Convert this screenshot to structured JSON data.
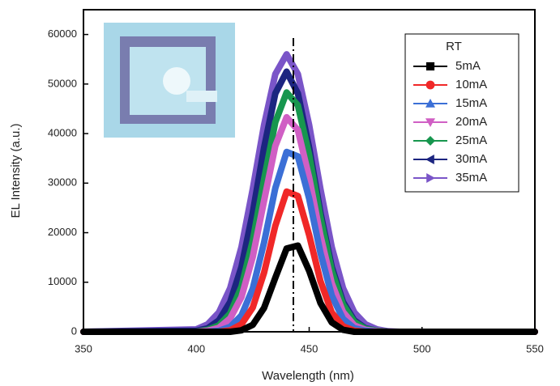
{
  "chart_data": {
    "type": "line",
    "x_label": "Wavelength (nm)",
    "y_label": "EL Intensity (a.u.)",
    "legend_title": "RT",
    "legend_position": "upper right",
    "xlim": [
      350,
      550
    ],
    "xticks": [
      350,
      400,
      450,
      500,
      550
    ],
    "ylim": [
      0,
      65000
    ],
    "yticks": [
      0,
      10000,
      20000,
      30000,
      40000,
      50000,
      60000
    ],
    "vline_x": 443,
    "x": [
      350,
      400,
      405,
      410,
      415,
      420,
      425,
      430,
      435,
      440,
      445,
      450,
      455,
      460,
      465,
      470,
      475,
      480,
      485,
      490,
      500,
      550
    ],
    "series": [
      {
        "name": "5mA",
        "color": "#000000",
        "marker": "square",
        "values": [
          0,
          0,
          0,
          0,
          0,
          300,
          1400,
          4800,
          10900,
          16800,
          17400,
          12300,
          5800,
          1900,
          400,
          0,
          0,
          0,
          0,
          0,
          0,
          0
        ]
      },
      {
        "name": "10mA",
        "color": "#f02828",
        "marker": "circle",
        "values": [
          0,
          0,
          0,
          0,
          300,
          1500,
          4900,
          11900,
          21400,
          28300,
          27400,
          19500,
          10200,
          3900,
          1100,
          200,
          0,
          0,
          0,
          0,
          0,
          0
        ]
      },
      {
        "name": "15mA",
        "color": "#3b6fd6",
        "marker": "triangle-up",
        "values": [
          0,
          0,
          0,
          200,
          1000,
          3300,
          8700,
          18000,
          29000,
          36300,
          35400,
          26900,
          15900,
          7300,
          2600,
          700,
          200,
          0,
          0,
          0,
          0,
          0
        ]
      },
      {
        "name": "20mA",
        "color": "#d05fc4",
        "marker": "triangle-down",
        "values": [
          0,
          0,
          200,
          800,
          2700,
          7000,
          15100,
          26400,
          37500,
          43300,
          40700,
          31100,
          19400,
          9800,
          4000,
          1300,
          400,
          100,
          0,
          0,
          0,
          0
        ]
      },
      {
        "name": "25mA",
        "color": "#17964e",
        "marker": "diamond",
        "values": [
          0,
          0,
          400,
          1300,
          3700,
          9100,
          18400,
          30700,
          42300,
          48300,
          45700,
          35700,
          23100,
          12400,
          5500,
          2000,
          600,
          200,
          0,
          0,
          0,
          0
        ]
      },
      {
        "name": "30mA",
        "color": "#1c2580",
        "marker": "triangle-left",
        "values": [
          0,
          200,
          700,
          2300,
          6000,
          13100,
          24000,
          37100,
          48100,
          52500,
          48100,
          37100,
          24000,
          13100,
          6000,
          2300,
          700,
          200,
          0,
          0,
          0,
          0
        ]
      },
      {
        "name": "35mA",
        "color": "#7a55c8",
        "marker": "triangle-right",
        "values": [
          0,
          500,
          1500,
          3900,
          8800,
          17100,
          28800,
          41700,
          52000,
          56000,
          52000,
          41700,
          28800,
          17100,
          8800,
          3900,
          1500,
          500,
          100,
          0,
          0,
          0
        ]
      }
    ]
  }
}
